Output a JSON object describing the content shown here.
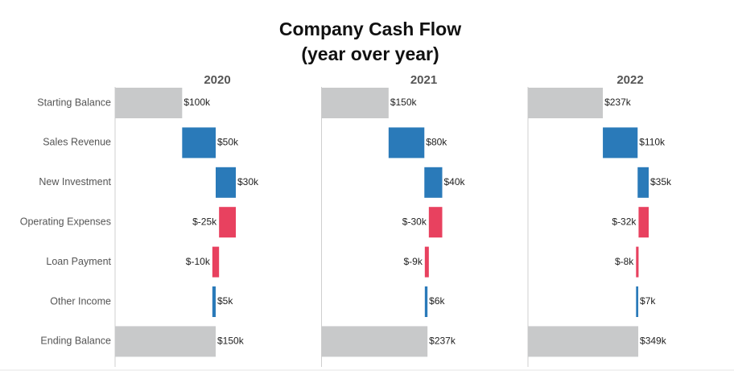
{
  "chart_data": {
    "type": "waterfall",
    "title": "Company Cash Flow",
    "subtitle": "(year over year)",
    "categories": [
      "Starting Balance",
      "Sales Revenue",
      "New Investment",
      "Operating Expenses",
      "Loan Payment",
      "Other Income",
      "Ending Balance"
    ],
    "increase_color": "#2a7ab9",
    "decrease_color": "#e8415f",
    "total_color": "#c8c9ca",
    "series": [
      {
        "name": "2020",
        "values": [
          100,
          50,
          30,
          -25,
          -10,
          5,
          150
        ],
        "value_labels": [
          "$100k",
          "$50k",
          "$30k",
          "$-25k",
          "$-10k",
          "$5k",
          "$150k"
        ]
      },
      {
        "name": "2021",
        "values": [
          150,
          80,
          40,
          -30,
          -9,
          6,
          237
        ],
        "value_labels": [
          "$150k",
          "$80k",
          "$40k",
          "$-30k",
          "$-9k",
          "$6k",
          "$237k"
        ]
      },
      {
        "name": "2022",
        "values": [
          237,
          110,
          35,
          -32,
          -8,
          7,
          349
        ],
        "value_labels": [
          "$237k",
          "$110k",
          "$35k",
          "$-32k",
          "$-8k",
          "$7k",
          "$349k"
        ]
      }
    ]
  }
}
